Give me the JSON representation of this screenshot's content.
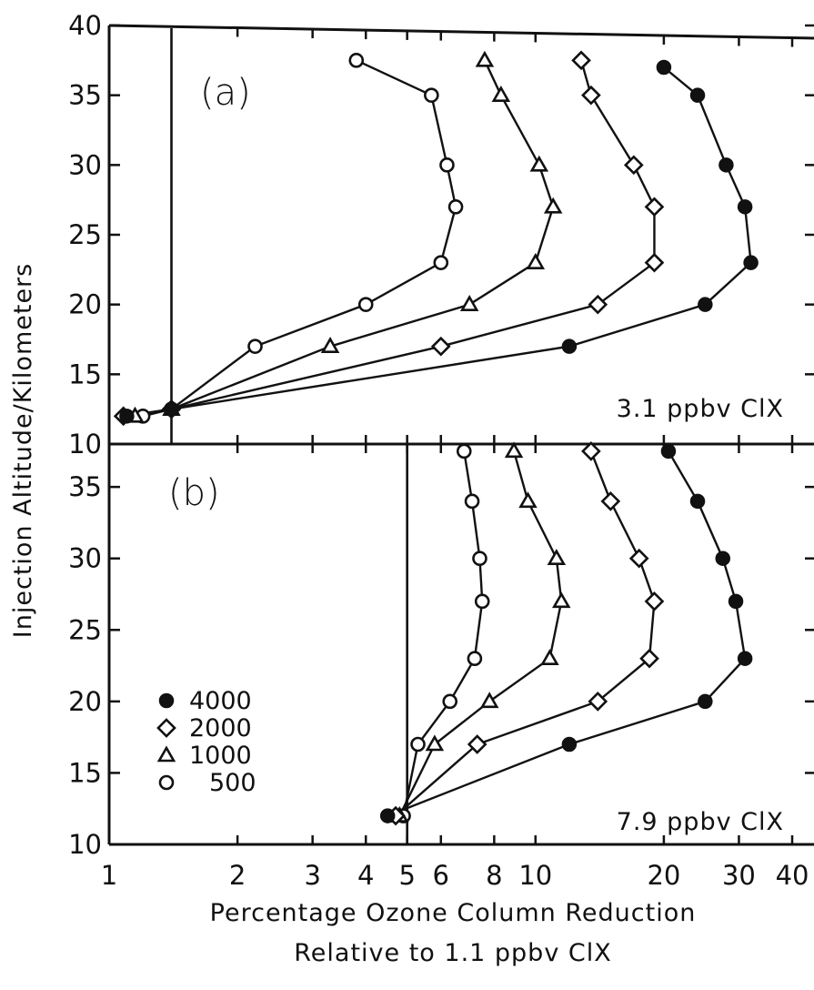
{
  "chart_data": {
    "type": "line",
    "x_scale": "log",
    "xlabel_line1": "Percentage Ozone Column Reduction",
    "xlabel_line2": "Relative to 1.1 ppbv ClX",
    "ylabel": "Injection Altitude/Kilometers",
    "xlim": [
      1,
      45
    ],
    "x_ticks": [
      1,
      2,
      3,
      4,
      5,
      6,
      8,
      10,
      20,
      30,
      40
    ],
    "x_tick_labels": [
      "1",
      "2",
      "3",
      "4",
      "5",
      "6",
      "8",
      "10",
      "20",
      "30",
      "40"
    ],
    "legend": {
      "placement": "lower-left of panel (b)",
      "entries": [
        {
          "label": "4000",
          "marker": "filled-circle"
        },
        {
          "label": "2000",
          "marker": "diamond"
        },
        {
          "label": "1000",
          "marker": "triangle"
        },
        {
          "label": "500",
          "marker": "open-circle"
        }
      ]
    },
    "panels": [
      {
        "id": "a",
        "panel_label": "(a)",
        "annotation": "3.1 ppbv ClX",
        "vertical_line_x": 1.4,
        "ylim": [
          10,
          40
        ],
        "y_ticks": [
          10,
          15,
          20,
          25,
          30,
          35,
          40
        ],
        "y_tick_labels": [
          "10",
          "15",
          "20",
          "25",
          "30",
          "35",
          "40"
        ],
        "series": [
          {
            "name": "500",
            "marker": "open-circle",
            "points": [
              [
                1.2,
                12
              ],
              [
                1.4,
                12.5
              ],
              [
                2.2,
                17
              ],
              [
                4.0,
                20
              ],
              [
                6.0,
                23
              ],
              [
                6.5,
                27
              ],
              [
                6.2,
                30
              ],
              [
                5.7,
                35
              ],
              [
                3.8,
                37.5
              ]
            ]
          },
          {
            "name": "1000",
            "marker": "triangle",
            "points": [
              [
                1.15,
                12
              ],
              [
                1.4,
                12.5
              ],
              [
                3.3,
                17
              ],
              [
                7.0,
                20
              ],
              [
                10.0,
                23
              ],
              [
                11.0,
                27
              ],
              [
                10.2,
                30
              ],
              [
                8.3,
                35
              ],
              [
                7.6,
                37.5
              ]
            ]
          },
          {
            "name": "2000",
            "marker": "diamond",
            "points": [
              [
                1.08,
                12
              ],
              [
                1.4,
                12.5
              ],
              [
                6.0,
                17
              ],
              [
                14.0,
                20
              ],
              [
                19.0,
                23
              ],
              [
                19.0,
                27
              ],
              [
                17.0,
                30
              ],
              [
                13.5,
                35
              ],
              [
                12.8,
                37.5
              ]
            ]
          },
          {
            "name": "4000",
            "marker": "filled-circle",
            "points": [
              [
                1.1,
                12
              ],
              [
                1.4,
                12.5
              ],
              [
                12.0,
                17
              ],
              [
                25.0,
                20
              ],
              [
                32.0,
                23
              ],
              [
                31.0,
                27
              ],
              [
                28.0,
                30
              ],
              [
                24.0,
                35
              ],
              [
                20.0,
                37
              ]
            ]
          }
        ]
      },
      {
        "id": "b",
        "panel_label": "(b)",
        "annotation": "7.9 ppbv ClX",
        "vertical_line_x": 5.0,
        "ylim": [
          10,
          38
        ],
        "y_ticks": [
          10,
          15,
          20,
          25,
          30,
          35
        ],
        "y_tick_labels": [
          "10",
          "15",
          "20",
          "25",
          "30",
          "35"
        ],
        "series": [
          {
            "name": "500",
            "marker": "open-circle",
            "points": [
              [
                4.9,
                12
              ],
              [
                5.3,
                17
              ],
              [
                6.3,
                20
              ],
              [
                7.2,
                23
              ],
              [
                7.5,
                27
              ],
              [
                7.4,
                30
              ],
              [
                7.1,
                34
              ],
              [
                6.8,
                37.5
              ]
            ]
          },
          {
            "name": "1000",
            "marker": "triangle",
            "points": [
              [
                4.8,
                12
              ],
              [
                5.8,
                17
              ],
              [
                7.8,
                20
              ],
              [
                10.8,
                23
              ],
              [
                11.5,
                27
              ],
              [
                11.2,
                30
              ],
              [
                9.6,
                34
              ],
              [
                8.9,
                37.5
              ]
            ]
          },
          {
            "name": "2000",
            "marker": "diamond",
            "points": [
              [
                4.7,
                12
              ],
              [
                7.3,
                17
              ],
              [
                14.0,
                20
              ],
              [
                18.5,
                23
              ],
              [
                19.0,
                27
              ],
              [
                17.5,
                30
              ],
              [
                15.0,
                34
              ],
              [
                13.5,
                37.5
              ]
            ]
          },
          {
            "name": "4000",
            "marker": "filled-circle",
            "points": [
              [
                4.5,
                12
              ],
              [
                12.0,
                17
              ],
              [
                25.0,
                20
              ],
              [
                31.0,
                23
              ],
              [
                29.5,
                27
              ],
              [
                27.5,
                30
              ],
              [
                24.0,
                34
              ],
              [
                20.5,
                37.5
              ]
            ]
          }
        ]
      }
    ]
  }
}
